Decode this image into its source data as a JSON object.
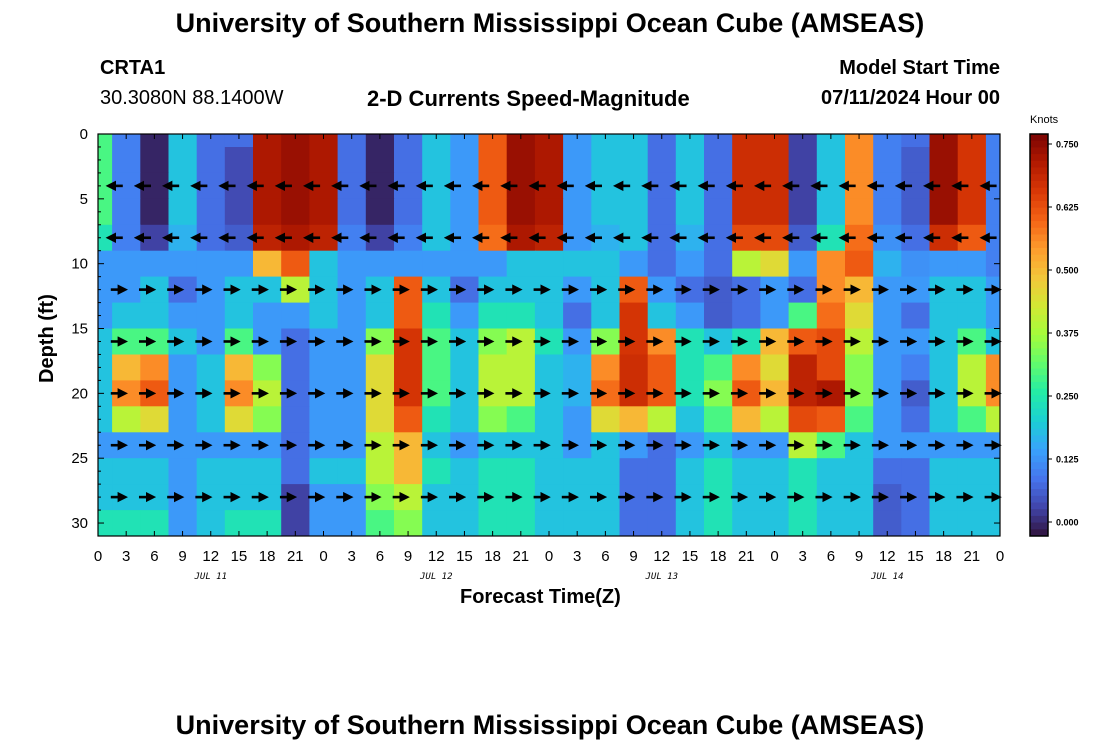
{
  "header": {
    "title": "University of Southern Mississippi Ocean Cube (AMSEAS)",
    "station_id": "CRTA1",
    "station_coords": "30.3080N  88.1400W",
    "plot_title": "2-D Currents Speed-Magnitude",
    "model_start_label": "Model Start Time",
    "model_start_value": "07/11/2024 Hour 00"
  },
  "footer": {
    "title": "University of Southern Mississippi Ocean Cube (AMSEAS)"
  },
  "chart_data": {
    "type": "heatmap",
    "title": "2-D Currents Speed-Magnitude",
    "xlabel": "Forecast Time(Z)",
    "ylabel": "Depth (ft)",
    "x_range_hours": [
      0,
      96
    ],
    "y_range_ft": [
      0,
      31
    ],
    "x_tick_labels": [
      "0",
      "3",
      "6",
      "9",
      "12",
      "15",
      "18",
      "21",
      "0",
      "3",
      "6",
      "9",
      "12",
      "15",
      "18",
      "21",
      "0",
      "3",
      "6",
      "9",
      "12",
      "15",
      "18",
      "21",
      "0",
      "3",
      "6",
      "9",
      "12",
      "15",
      "18",
      "21",
      "0"
    ],
    "y_tick_values": [
      0,
      5,
      10,
      15,
      20,
      25,
      30
    ],
    "date_labels": [
      {
        "hour": 12,
        "label": "JUL 11"
      },
      {
        "hour": 36,
        "label": "JUL 12"
      },
      {
        "hour": 60,
        "label": "JUL 13"
      },
      {
        "hour": 84,
        "label": "JUL 14"
      }
    ],
    "colorbar": {
      "unit": "Knots",
      "min": 0.0,
      "max": 0.75,
      "ticks": [
        "0.750",
        "0.625",
        "0.500",
        "0.375",
        "0.250",
        "0.125",
        "0.000"
      ],
      "colors": [
        "#30123b",
        "#4145ab",
        "#4675ed",
        "#39a2fc",
        "#1bcfd4",
        "#24eca6",
        "#61fc6c",
        "#a4fc3b",
        "#d1e834",
        "#f3c63a",
        "#fe9b2d",
        "#f36315",
        "#d93806",
        "#b11901",
        "#7a0403"
      ]
    },
    "arrow_depths_ft": [
      4,
      8,
      12,
      16,
      20,
      24,
      28
    ],
    "arrow_hours": [
      2,
      5,
      8,
      11,
      14,
      17,
      20,
      23,
      26,
      29,
      32,
      35,
      38,
      41,
      44,
      47,
      50,
      53,
      56,
      59,
      62,
      65,
      68,
      71,
      74,
      77,
      80,
      83,
      86,
      89,
      92,
      95
    ],
    "depths_ft": [
      0,
      2,
      4,
      6,
      8,
      10,
      12,
      14,
      16,
      18,
      20,
      22,
      24,
      26,
      28,
      30,
      31
    ],
    "hours": [
      0,
      3,
      6,
      9,
      12,
      15,
      18,
      21,
      24,
      27,
      30,
      33,
      36,
      39,
      42,
      45,
      48,
      51,
      54,
      57,
      60,
      63,
      66,
      69,
      72,
      75,
      78,
      81,
      84,
      87,
      90,
      93,
      96
    ],
    "speed_knots": [
      [
        0.3,
        0.12,
        0.02,
        0.2,
        0.1,
        0.1,
        0.7,
        0.72,
        0.7,
        0.1,
        0.02,
        0.1,
        0.2,
        0.15,
        0.6,
        0.72,
        0.7,
        0.15,
        0.2,
        0.2,
        0.1,
        0.2,
        0.1,
        0.66,
        0.66,
        0.05,
        0.2,
        0.55,
        0.12,
        0.1,
        0.72,
        0.65,
        0.12
      ],
      [
        0.3,
        0.12,
        0.02,
        0.2,
        0.1,
        0.06,
        0.7,
        0.72,
        0.7,
        0.1,
        0.02,
        0.1,
        0.2,
        0.15,
        0.6,
        0.72,
        0.7,
        0.15,
        0.2,
        0.2,
        0.1,
        0.2,
        0.1,
        0.66,
        0.66,
        0.05,
        0.2,
        0.55,
        0.12,
        0.08,
        0.72,
        0.65,
        0.12
      ],
      [
        0.3,
        0.12,
        0.02,
        0.2,
        0.1,
        0.06,
        0.7,
        0.72,
        0.7,
        0.1,
        0.02,
        0.1,
        0.2,
        0.15,
        0.6,
        0.72,
        0.7,
        0.15,
        0.2,
        0.2,
        0.1,
        0.2,
        0.1,
        0.66,
        0.66,
        0.05,
        0.2,
        0.55,
        0.12,
        0.08,
        0.72,
        0.65,
        0.12
      ],
      [
        0.3,
        0.12,
        0.02,
        0.2,
        0.1,
        0.06,
        0.7,
        0.72,
        0.7,
        0.1,
        0.02,
        0.1,
        0.2,
        0.15,
        0.6,
        0.72,
        0.7,
        0.15,
        0.2,
        0.2,
        0.1,
        0.2,
        0.1,
        0.66,
        0.66,
        0.05,
        0.2,
        0.55,
        0.12,
        0.08,
        0.72,
        0.65,
        0.12
      ],
      [
        0.25,
        0.12,
        0.05,
        0.18,
        0.1,
        0.08,
        0.68,
        0.7,
        0.68,
        0.12,
        0.05,
        0.12,
        0.2,
        0.15,
        0.58,
        0.7,
        0.68,
        0.15,
        0.18,
        0.2,
        0.1,
        0.18,
        0.1,
        0.62,
        0.62,
        0.08,
        0.25,
        0.58,
        0.14,
        0.1,
        0.66,
        0.6,
        0.12
      ],
      [
        0.15,
        0.15,
        0.15,
        0.15,
        0.15,
        0.15,
        0.5,
        0.6,
        0.2,
        0.15,
        0.15,
        0.15,
        0.15,
        0.15,
        0.15,
        0.2,
        0.2,
        0.2,
        0.2,
        0.15,
        0.1,
        0.15,
        0.1,
        0.4,
        0.45,
        0.15,
        0.55,
        0.6,
        0.18,
        0.14,
        0.15,
        0.15,
        0.12
      ],
      [
        0.15,
        0.15,
        0.2,
        0.1,
        0.15,
        0.2,
        0.2,
        0.4,
        0.2,
        0.15,
        0.2,
        0.6,
        0.2,
        0.1,
        0.2,
        0.2,
        0.2,
        0.15,
        0.2,
        0.6,
        0.15,
        0.1,
        0.08,
        0.1,
        0.15,
        0.1,
        0.55,
        0.5,
        0.15,
        0.15,
        0.2,
        0.2,
        0.15
      ],
      [
        0.15,
        0.2,
        0.2,
        0.15,
        0.15,
        0.2,
        0.15,
        0.15,
        0.2,
        0.15,
        0.2,
        0.6,
        0.25,
        0.15,
        0.25,
        0.25,
        0.2,
        0.1,
        0.2,
        0.65,
        0.2,
        0.15,
        0.08,
        0.1,
        0.15,
        0.3,
        0.58,
        0.45,
        0.15,
        0.1,
        0.2,
        0.2,
        0.15
      ],
      [
        0.2,
        0.3,
        0.3,
        0.2,
        0.15,
        0.3,
        0.15,
        0.1,
        0.15,
        0.15,
        0.35,
        0.65,
        0.3,
        0.2,
        0.35,
        0.4,
        0.25,
        0.15,
        0.35,
        0.65,
        0.55,
        0.25,
        0.2,
        0.25,
        0.5,
        0.6,
        0.62,
        0.4,
        0.15,
        0.15,
        0.2,
        0.3,
        0.2
      ],
      [
        0.2,
        0.5,
        0.55,
        0.15,
        0.2,
        0.5,
        0.35,
        0.1,
        0.15,
        0.15,
        0.45,
        0.65,
        0.3,
        0.2,
        0.4,
        0.4,
        0.2,
        0.18,
        0.55,
        0.66,
        0.6,
        0.25,
        0.3,
        0.55,
        0.45,
        0.68,
        0.62,
        0.35,
        0.15,
        0.12,
        0.2,
        0.4,
        0.55
      ],
      [
        0.2,
        0.55,
        0.6,
        0.15,
        0.2,
        0.55,
        0.4,
        0.1,
        0.15,
        0.15,
        0.45,
        0.65,
        0.3,
        0.2,
        0.4,
        0.4,
        0.2,
        0.18,
        0.58,
        0.66,
        0.6,
        0.25,
        0.35,
        0.6,
        0.5,
        0.68,
        0.7,
        0.35,
        0.15,
        0.08,
        0.2,
        0.4,
        0.55
      ],
      [
        0.2,
        0.4,
        0.45,
        0.15,
        0.2,
        0.45,
        0.35,
        0.1,
        0.15,
        0.15,
        0.45,
        0.6,
        0.25,
        0.2,
        0.35,
        0.3,
        0.2,
        0.15,
        0.45,
        0.5,
        0.4,
        0.2,
        0.3,
        0.5,
        0.4,
        0.62,
        0.6,
        0.3,
        0.15,
        0.1,
        0.2,
        0.3,
        0.4
      ],
      [
        0.15,
        0.15,
        0.15,
        0.15,
        0.15,
        0.15,
        0.15,
        0.1,
        0.15,
        0.15,
        0.4,
        0.5,
        0.2,
        0.15,
        0.2,
        0.2,
        0.2,
        0.15,
        0.2,
        0.15,
        0.1,
        0.15,
        0.2,
        0.15,
        0.15,
        0.4,
        0.3,
        0.2,
        0.15,
        0.15,
        0.15,
        0.15,
        0.15
      ],
      [
        0.2,
        0.2,
        0.2,
        0.15,
        0.2,
        0.2,
        0.2,
        0.1,
        0.2,
        0.2,
        0.4,
        0.5,
        0.25,
        0.2,
        0.25,
        0.25,
        0.2,
        0.2,
        0.2,
        0.1,
        0.1,
        0.2,
        0.25,
        0.2,
        0.2,
        0.25,
        0.2,
        0.2,
        0.1,
        0.1,
        0.2,
        0.2,
        0.2
      ],
      [
        0.2,
        0.2,
        0.2,
        0.15,
        0.2,
        0.2,
        0.2,
        0.05,
        0.15,
        0.15,
        0.35,
        0.4,
        0.2,
        0.2,
        0.25,
        0.25,
        0.2,
        0.2,
        0.2,
        0.1,
        0.1,
        0.2,
        0.25,
        0.2,
        0.2,
        0.25,
        0.2,
        0.2,
        0.08,
        0.1,
        0.2,
        0.2,
        0.2
      ],
      [
        0.25,
        0.25,
        0.25,
        0.15,
        0.2,
        0.25,
        0.25,
        0.05,
        0.15,
        0.15,
        0.3,
        0.35,
        0.2,
        0.2,
        0.25,
        0.25,
        0.2,
        0.2,
        0.2,
        0.1,
        0.1,
        0.2,
        0.25,
        0.2,
        0.2,
        0.25,
        0.2,
        0.2,
        0.08,
        0.1,
        0.2,
        0.2,
        0.2
      ],
      [
        0.25,
        0.25,
        0.25,
        0.15,
        0.2,
        0.25,
        0.25,
        0.05,
        0.15,
        0.15,
        0.3,
        0.35,
        0.2,
        0.2,
        0.25,
        0.25,
        0.2,
        0.2,
        0.2,
        0.1,
        0.1,
        0.2,
        0.25,
        0.2,
        0.2,
        0.25,
        0.2,
        0.2,
        0.08,
        0.1,
        0.2,
        0.2,
        0.2
      ]
    ]
  }
}
